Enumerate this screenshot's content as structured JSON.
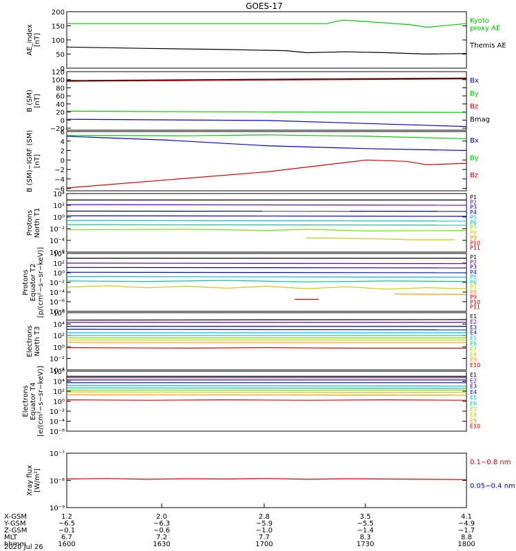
{
  "title": "GOES-17",
  "colors": {
    "black": "#000000",
    "blue": "#0000e0",
    "green": "#00cc00",
    "red": "#dd0000",
    "cyan": "#00bbdd",
    "teal": "#00c8a0",
    "yellow": "#cccc00",
    "orange": "#ff9900",
    "darkred": "#aa0000",
    "purple": "#6600aa",
    "darkblue": "#000090",
    "lime": "#80dd00"
  },
  "chart_data": [
    {
      "id": "ae",
      "type": "line",
      "ylabel": "AE_index\n[nT]",
      "ylim": [
        0,
        200
      ],
      "ticks": [
        "0",
        "50",
        "100",
        "150",
        "200"
      ],
      "scale": "linear",
      "series": [
        {
          "name": "Kyoto\nproxy AE",
          "color": "green",
          "x": [
            0,
            0.3,
            0.5,
            0.65,
            0.69,
            0.72,
            0.8,
            0.86,
            0.9,
            1.0
          ],
          "y": [
            158,
            158,
            158,
            158,
            170,
            168,
            160,
            154,
            145,
            158
          ]
        },
        {
          "name": "Themis AE",
          "color": "black",
          "x": [
            0,
            0.2,
            0.4,
            0.55,
            0.6,
            0.7,
            0.8,
            0.9,
            1.0
          ],
          "y": [
            75,
            70,
            66,
            62,
            55,
            58,
            55,
            50,
            52
          ]
        }
      ]
    },
    {
      "id": "bsm",
      "type": "line",
      "ylabel": "B (SM)\n[nT]",
      "ylim": [
        -25,
        120
      ],
      "ticks": [
        "−20",
        "0",
        "20",
        "40",
        "60",
        "80",
        "100",
        "120"
      ],
      "scale": "linear",
      "series": [
        {
          "name": "Bx",
          "color": "blue",
          "x": [
            0,
            0.5,
            1.0
          ],
          "y": [
            2,
            -1,
            -16
          ]
        },
        {
          "name": "By",
          "color": "green",
          "x": [
            0,
            0.5,
            1.0
          ],
          "y": [
            22,
            20,
            19
          ]
        },
        {
          "name": "Bz",
          "color": "red",
          "x": [
            0,
            0.5,
            1.0
          ],
          "y": [
            96,
            99,
            102
          ]
        },
        {
          "name": "Bmag",
          "color": "black",
          "x": [
            0,
            0.5,
            1.0
          ],
          "y": [
            98,
            101,
            104
          ]
        }
      ]
    },
    {
      "id": "bdiff",
      "type": "line",
      "ylabel": "B (SM)−IGRF (SM)\n[nT]",
      "ylim": [
        -6.5,
        6
      ],
      "ticks": [
        "−6",
        "−4",
        "−2",
        "0",
        "2",
        "4",
        "6"
      ],
      "scale": "linear",
      "series": [
        {
          "name": "Bx",
          "color": "blue",
          "x": [
            0,
            0.25,
            0.5,
            0.75,
            1.0
          ],
          "y": [
            5,
            4.2,
            3,
            2.4,
            2
          ]
        },
        {
          "name": "By",
          "color": "green",
          "x": [
            0,
            0.3,
            0.5,
            0.75,
            1.0
          ],
          "y": [
            5.2,
            5.1,
            5.3,
            5,
            4.5
          ]
        },
        {
          "name": "Bz",
          "color": "red",
          "x": [
            0,
            0.25,
            0.5,
            0.75,
            0.85,
            0.9,
            1.0
          ],
          "y": [
            -5.9,
            -4.2,
            -2.5,
            0,
            -0.3,
            -1,
            -0.7
          ]
        }
      ]
    },
    {
      "id": "pn",
      "type": "line",
      "ylabel": "Protons\nNorth T1",
      "scale": "log",
      "ylim": [
        -6,
        4
      ],
      "ticks": [
        "10⁻⁶",
        "10⁻⁴",
        "10⁻²",
        "10⁰",
        "10²",
        "10⁴"
      ],
      "series": [
        {
          "name": "P1",
          "color": "black",
          "x": [
            0,
            1
          ],
          "y": [
            2.9,
            2.9
          ]
        },
        {
          "name": "P2",
          "color": "purple",
          "x": [
            0,
            1
          ],
          "y": [
            2.1,
            2.0
          ]
        },
        {
          "name": "P3",
          "color": "darkblue",
          "x": [
            0,
            1
          ],
          "y": [
            1.0,
            0.95
          ]
        },
        {
          "name": "P4",
          "color": "blue",
          "x": [
            0,
            1
          ],
          "y": [
            0.2,
            0.1
          ]
        },
        {
          "name": "P5",
          "color": "cyan",
          "x": [
            0,
            1
          ],
          "y": [
            -0.6,
            -0.7
          ]
        },
        {
          "name": "P6",
          "color": "teal",
          "x": [
            0,
            1
          ],
          "y": [
            -1.3,
            -1.4
          ]
        },
        {
          "name": "P7",
          "color": "lime",
          "x": [
            0,
            0.3,
            0.5,
            0.6,
            0.75,
            1
          ],
          "y": [
            -2.2,
            -2.1,
            -2.3,
            -2.1,
            -2.4,
            -2.3
          ]
        },
        {
          "name": "P8",
          "color": "yellow",
          "x": [
            0.6,
            0.65,
            0.82,
            0.86,
            0.93,
            0.97
          ],
          "y": [
            -3.6,
            -3.6,
            -3.8,
            -3.9,
            -3.9,
            -3.9
          ]
        },
        {
          "name": "P9",
          "color": "orange",
          "x": [],
          "y": []
        },
        {
          "name": "P10",
          "color": "red",
          "x": [],
          "y": []
        },
        {
          "name": "P11",
          "color": "darkred",
          "x": [],
          "y": []
        }
      ]
    },
    {
      "id": "pe",
      "type": "line",
      "ylabel": "Protons\nEquator T2\n[p/(cm²−s−sr−keV)]",
      "scale": "log",
      "ylim": [
        -8,
        4
      ],
      "ticks": [
        "10⁻⁸",
        "10⁻⁶",
        "10⁻⁴",
        "10⁻²",
        "10⁰",
        "10²",
        "10⁴"
      ],
      "series": [
        {
          "name": "P1",
          "color": "black",
          "x": [
            0,
            1
          ],
          "y": [
            3.0,
            3.0
          ]
        },
        {
          "name": "P2",
          "color": "purple",
          "x": [
            0,
            1
          ],
          "y": [
            2.0,
            1.9
          ]
        },
        {
          "name": "P3",
          "color": "darkblue",
          "x": [
            0,
            1
          ],
          "y": [
            1.1,
            1.0
          ]
        },
        {
          "name": "P4",
          "color": "blue",
          "x": [
            0,
            1
          ],
          "y": [
            0.1,
            0.0
          ]
        },
        {
          "name": "P5",
          "color": "cyan",
          "x": [
            0,
            1
          ],
          "y": [
            -0.8,
            -0.9
          ]
        },
        {
          "name": "P6",
          "color": "teal",
          "x": [
            0,
            0.2,
            0.4,
            0.6,
            0.8,
            1
          ],
          "y": [
            -1.7,
            -1.8,
            -1.6,
            -1.9,
            -1.7,
            -1.8
          ]
        },
        {
          "name": "P7",
          "color": "yellow",
          "x": [
            0,
            0.1,
            0.2,
            0.3,
            0.4,
            0.5,
            0.6,
            0.7,
            0.8,
            0.9,
            1
          ],
          "y": [
            -3,
            -2.7,
            -3.1,
            -2.8,
            -3.2,
            -2.8,
            -3.3,
            -2.9,
            -3.4,
            -3.1,
            -3.3
          ]
        },
        {
          "name": "P8",
          "color": "orange",
          "x": [
            0.82,
            1
          ],
          "y": [
            -4.4,
            -4.5
          ]
        },
        {
          "name": "P9",
          "color": "red",
          "x": [
            0.57,
            0.63
          ],
          "y": [
            -5.5,
            -5.5
          ]
        },
        {
          "name": "P10",
          "color": "darkred",
          "x": [],
          "y": []
        },
        {
          "name": "P11",
          "color": "darkred",
          "x": [],
          "y": []
        }
      ]
    },
    {
      "id": "en",
      "type": "line",
      "ylabel": "Electrons\nNorth T3",
      "scale": "log",
      "ylim": [
        -4,
        6
      ],
      "ticks": [
        "10⁻⁴",
        "10⁻²",
        "10⁰",
        "10²",
        "10⁴",
        "10⁶"
      ],
      "series": [
        {
          "name": "E1",
          "color": "black",
          "x": [
            0,
            1
          ],
          "y": [
            4.7,
            4.8
          ]
        },
        {
          "name": "E2",
          "color": "purple",
          "x": [
            0,
            1
          ],
          "y": [
            4.3,
            4.3
          ]
        },
        {
          "name": "E3",
          "color": "darkblue",
          "x": [
            0,
            1
          ],
          "y": [
            3.6,
            3.6
          ]
        },
        {
          "name": "E4",
          "color": "blue",
          "x": [
            0,
            1
          ],
          "y": [
            3.1,
            3.0
          ]
        },
        {
          "name": "E5",
          "color": "cyan",
          "x": [
            0,
            1
          ],
          "y": [
            2.5,
            2.5
          ]
        },
        {
          "name": "E6",
          "color": "teal",
          "x": [
            0,
            1
          ],
          "y": [
            2.0,
            2.0
          ]
        },
        {
          "name": "E7",
          "color": "lime",
          "x": [
            0,
            1
          ],
          "y": [
            1.6,
            1.6
          ]
        },
        {
          "name": "E8",
          "color": "yellow",
          "x": [
            0,
            1
          ],
          "y": [
            1.2,
            1.2
          ]
        },
        {
          "name": "E9",
          "color": "orange",
          "x": [
            0,
            1
          ],
          "y": [
            0.8,
            0.8
          ]
        },
        {
          "name": "E10",
          "color": "red",
          "x": [
            0,
            0.3,
            0.5,
            0.7,
            1
          ],
          "y": [
            -0.1,
            -0.2,
            -0.1,
            -0.2,
            -0.2
          ]
        }
      ]
    },
    {
      "id": "ee",
      "type": "line",
      "ylabel": "Electrons\nEquator T4\n[e/(cm²−s−sr−keV)]",
      "scale": "log",
      "ylim": [
        -7,
        6
      ],
      "ticks": [
        "10⁻⁶",
        "10⁻⁴",
        "10⁻²",
        "10⁰",
        "10²",
        "10⁴",
        "10⁶"
      ],
      "series": [
        {
          "name": "E1",
          "color": "black",
          "x": [
            0,
            1
          ],
          "y": [
            4.9,
            4.9
          ]
        },
        {
          "name": "E2",
          "color": "purple",
          "x": [
            0,
            1
          ],
          "y": [
            4.6,
            4.6
          ]
        },
        {
          "name": "E3",
          "color": "darkblue",
          "x": [
            0,
            1
          ],
          "y": [
            4.1,
            4.1
          ]
        },
        {
          "name": "E4",
          "color": "blue",
          "x": [
            0,
            1
          ],
          "y": [
            3.5,
            3.5
          ]
        },
        {
          "name": "E5",
          "color": "cyan",
          "x": [
            0,
            1
          ],
          "y": [
            2.9,
            2.8
          ]
        },
        {
          "name": "E6",
          "color": "teal",
          "x": [
            0,
            1
          ],
          "y": [
            2.4,
            2.3
          ]
        },
        {
          "name": "E7",
          "color": "lime",
          "x": [
            0,
            1
          ],
          "y": [
            1.9,
            1.9
          ]
        },
        {
          "name": "E8",
          "color": "yellow",
          "x": [
            0,
            1
          ],
          "y": [
            1.5,
            1.4
          ]
        },
        {
          "name": "E9",
          "color": "orange",
          "x": [
            0,
            1
          ],
          "y": [
            0.9,
            0.8
          ]
        },
        {
          "name": "E10",
          "color": "red",
          "x": [
            0,
            0.2,
            0.4,
            0.6,
            0.8,
            1
          ],
          "y": [
            -0.2,
            -0.3,
            -0.2,
            -0.3,
            -0.2,
            -0.3
          ]
        }
      ]
    },
    {
      "id": "xray",
      "type": "line",
      "ylabel": "Xray flux\n[W/m²]",
      "scale": "log",
      "ylim": [
        -9,
        -7
      ],
      "ticks": [
        "10⁻⁹",
        "10⁻⁸",
        "10⁻⁷"
      ],
      "series": [
        {
          "name": "0.1−0.8 nm",
          "color": "red",
          "x": [
            0,
            0.1,
            0.2,
            0.3,
            0.4,
            0.5,
            0.6,
            0.7,
            0.8,
            0.9,
            1
          ],
          "y": [
            -7.95,
            -7.93,
            -7.96,
            -7.94,
            -7.95,
            -7.93,
            -7.96,
            -7.94,
            -7.95,
            -7.96,
            -7.97
          ]
        },
        {
          "name": "0.05−0.4 nm",
          "color": "blue",
          "x": [],
          "y": []
        }
      ]
    }
  ],
  "time_axis": {
    "rows": [
      {
        "label": "X-GSM",
        "values": [
          "1.2",
          "2.0",
          "2.8",
          "3.5",
          "4.1"
        ]
      },
      {
        "label": "Y-GSM",
        "values": [
          "−6.5",
          "−6.3",
          "−5.9",
          "−5.5",
          "−4.9"
        ]
      },
      {
        "label": "Z-GSM",
        "values": [
          "−0.1",
          "−0.6",
          "−1.0",
          "−1.4",
          "−1.7"
        ]
      },
      {
        "label": "MLT",
        "values": [
          "6.7",
          "7.2",
          "7.7",
          "8.3",
          "8.8"
        ]
      },
      {
        "label": "hhmm",
        "values": [
          "1600",
          "1630",
          "1700",
          "1730",
          "1800"
        ]
      }
    ],
    "date": "2020 Jul 26"
  }
}
